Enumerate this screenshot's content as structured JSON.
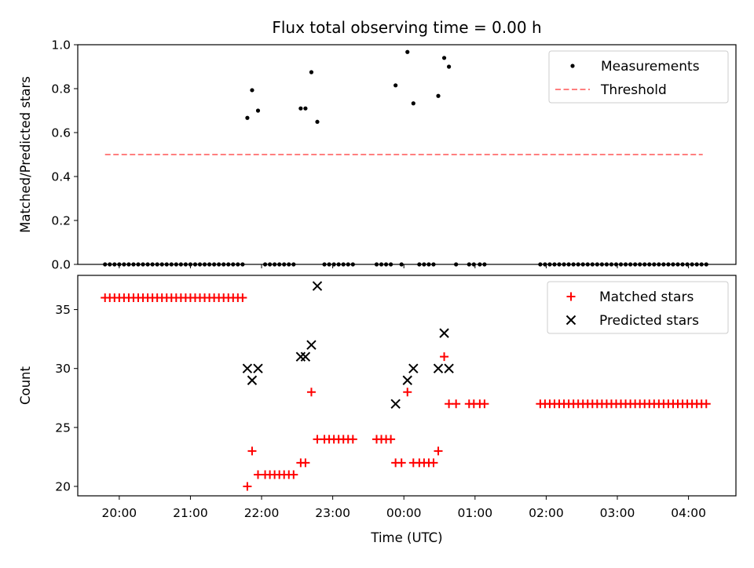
{
  "title": "Flux total observing time = 0.00 h",
  "xlabel": "Time (UTC)",
  "colors": {
    "measurement": "#000000",
    "threshold": "#ff7f7f",
    "matched": "#ff0000",
    "predicted": "#000000"
  },
  "chart_data": [
    {
      "type": "scatter",
      "ylabel": "Matched/Predicted stars",
      "ylim": [
        0,
        1.0
      ],
      "yticks": [
        "0.0",
        "0.2",
        "0.4",
        "0.6",
        "0.8",
        "1.0"
      ],
      "xlim": [
        "19:25",
        "04:40"
      ],
      "xticks": [
        "20:00",
        "21:00",
        "22:00",
        "23:00",
        "00:00",
        "01:00",
        "02:00",
        "03:00",
        "04:00"
      ],
      "legend_position": "top-right",
      "grid": false,
      "series": [
        {
          "name": "Measurements",
          "kind": "points",
          "points": [
            [
              "19:48",
              0
            ],
            [
              "19:52",
              0
            ],
            [
              "19:56",
              0
            ],
            [
              "20:00",
              0
            ],
            [
              "20:04",
              0
            ],
            [
              "20:08",
              0
            ],
            [
              "20:12",
              0
            ],
            [
              "20:16",
              0
            ],
            [
              "20:20",
              0
            ],
            [
              "20:24",
              0
            ],
            [
              "20:28",
              0
            ],
            [
              "20:32",
              0
            ],
            [
              "20:36",
              0
            ],
            [
              "20:40",
              0
            ],
            [
              "20:44",
              0
            ],
            [
              "20:48",
              0
            ],
            [
              "20:52",
              0
            ],
            [
              "20:56",
              0
            ],
            [
              "21:00",
              0
            ],
            [
              "21:04",
              0
            ],
            [
              "21:08",
              0
            ],
            [
              "21:12",
              0
            ],
            [
              "21:16",
              0
            ],
            [
              "21:20",
              0
            ],
            [
              "21:24",
              0
            ],
            [
              "21:28",
              0
            ],
            [
              "21:32",
              0
            ],
            [
              "21:36",
              0
            ],
            [
              "21:40",
              0
            ],
            [
              "21:44",
              0
            ],
            [
              "21:48",
              0.667
            ],
            [
              "21:52",
              0.793
            ],
            [
              "21:57",
              0.7
            ],
            [
              "22:03",
              0
            ],
            [
              "22:07",
              0
            ],
            [
              "22:11",
              0
            ],
            [
              "22:15",
              0
            ],
            [
              "22:19",
              0
            ],
            [
              "22:23",
              0
            ],
            [
              "22:27",
              0
            ],
            [
              "22:33",
              0.71
            ],
            [
              "22:37",
              0.71
            ],
            [
              "22:42",
              0.875
            ],
            [
              "22:47",
              0.649
            ],
            [
              "22:53",
              0
            ],
            [
              "22:57",
              0
            ],
            [
              "23:01",
              0
            ],
            [
              "23:05",
              0
            ],
            [
              "23:09",
              0
            ],
            [
              "23:13",
              0
            ],
            [
              "23:17",
              0
            ],
            [
              "23:37",
              0
            ],
            [
              "23:41",
              0
            ],
            [
              "23:45",
              0
            ],
            [
              "23:49",
              0
            ],
            [
              "23:53",
              0.815
            ],
            [
              "23:58",
              0
            ],
            [
              "00:03",
              0.967
            ],
            [
              "00:08",
              0.733
            ],
            [
              "00:13",
              0
            ],
            [
              "00:17",
              0
            ],
            [
              "00:21",
              0
            ],
            [
              "00:25",
              0
            ],
            [
              "00:29",
              0.767
            ],
            [
              "00:34",
              0.94
            ],
            [
              "00:38",
              0.9
            ],
            [
              "00:44",
              0
            ],
            [
              "00:55",
              0
            ],
            [
              "00:59",
              0
            ],
            [
              "01:04",
              0
            ],
            [
              "01:08",
              0
            ],
            [
              "01:55",
              0
            ],
            [
              "01:59",
              0
            ],
            [
              "02:03",
              0
            ],
            [
              "02:07",
              0
            ],
            [
              "02:11",
              0
            ],
            [
              "02:15",
              0
            ],
            [
              "02:19",
              0
            ],
            [
              "02:23",
              0
            ],
            [
              "02:27",
              0
            ],
            [
              "02:31",
              0
            ],
            [
              "02:35",
              0
            ],
            [
              "02:39",
              0
            ],
            [
              "02:43",
              0
            ],
            [
              "02:47",
              0
            ],
            [
              "02:51",
              0
            ],
            [
              "02:55",
              0
            ],
            [
              "02:59",
              0
            ],
            [
              "03:03",
              0
            ],
            [
              "03:07",
              0
            ],
            [
              "03:11",
              0
            ],
            [
              "03:15",
              0
            ],
            [
              "03:19",
              0
            ],
            [
              "03:23",
              0
            ],
            [
              "03:27",
              0
            ],
            [
              "03:31",
              0
            ],
            [
              "03:35",
              0
            ],
            [
              "03:39",
              0
            ],
            [
              "03:43",
              0
            ],
            [
              "03:47",
              0
            ],
            [
              "03:51",
              0
            ],
            [
              "03:55",
              0
            ],
            [
              "03:59",
              0
            ],
            [
              "04:03",
              0
            ],
            [
              "04:07",
              0
            ],
            [
              "04:11",
              0
            ],
            [
              "04:15",
              0
            ]
          ]
        },
        {
          "name": "Threshold",
          "kind": "dashed-line",
          "points": [
            [
              "19:48",
              0.5
            ],
            [
              "04:12",
              0.5
            ]
          ]
        }
      ]
    },
    {
      "type": "scatter",
      "ylabel": "Count",
      "ylim": [
        19.2,
        37.9
      ],
      "yticks": [
        "20",
        "25",
        "30",
        "35"
      ],
      "xlim": [
        "19:25",
        "04:40"
      ],
      "xticks": [
        "20:00",
        "21:00",
        "22:00",
        "23:00",
        "00:00",
        "01:00",
        "02:00",
        "03:00",
        "04:00"
      ],
      "legend_position": "top-right",
      "grid": false,
      "series": [
        {
          "name": "Matched stars",
          "marker": "plus",
          "points": [
            [
              "19:48",
              36
            ],
            [
              "19:52",
              36
            ],
            [
              "19:56",
              36
            ],
            [
              "20:00",
              36
            ],
            [
              "20:04",
              36
            ],
            [
              "20:08",
              36
            ],
            [
              "20:12",
              36
            ],
            [
              "20:16",
              36
            ],
            [
              "20:20",
              36
            ],
            [
              "20:24",
              36
            ],
            [
              "20:28",
              36
            ],
            [
              "20:32",
              36
            ],
            [
              "20:36",
              36
            ],
            [
              "20:40",
              36
            ],
            [
              "20:44",
              36
            ],
            [
              "20:48",
              36
            ],
            [
              "20:52",
              36
            ],
            [
              "20:56",
              36
            ],
            [
              "21:00",
              36
            ],
            [
              "21:04",
              36
            ],
            [
              "21:08",
              36
            ],
            [
              "21:12",
              36
            ],
            [
              "21:16",
              36
            ],
            [
              "21:20",
              36
            ],
            [
              "21:24",
              36
            ],
            [
              "21:28",
              36
            ],
            [
              "21:32",
              36
            ],
            [
              "21:36",
              36
            ],
            [
              "21:40",
              36
            ],
            [
              "21:44",
              36
            ],
            [
              "21:48",
              20
            ],
            [
              "21:52",
              23
            ],
            [
              "21:57",
              21
            ],
            [
              "22:03",
              21
            ],
            [
              "22:07",
              21
            ],
            [
              "22:11",
              21
            ],
            [
              "22:15",
              21
            ],
            [
              "22:19",
              21
            ],
            [
              "22:23",
              21
            ],
            [
              "22:27",
              21
            ],
            [
              "22:33",
              22
            ],
            [
              "22:37",
              22
            ],
            [
              "22:42",
              28
            ],
            [
              "22:47",
              24
            ],
            [
              "22:53",
              24
            ],
            [
              "22:57",
              24
            ],
            [
              "23:01",
              24
            ],
            [
              "23:05",
              24
            ],
            [
              "23:09",
              24
            ],
            [
              "23:13",
              24
            ],
            [
              "23:17",
              24
            ],
            [
              "23:37",
              24
            ],
            [
              "23:41",
              24
            ],
            [
              "23:45",
              24
            ],
            [
              "23:49",
              24
            ],
            [
              "23:53",
              22
            ],
            [
              "23:58",
              22
            ],
            [
              "00:03",
              28
            ],
            [
              "00:08",
              22
            ],
            [
              "00:13",
              22
            ],
            [
              "00:17",
              22
            ],
            [
              "00:21",
              22
            ],
            [
              "00:25",
              22
            ],
            [
              "00:29",
              23
            ],
            [
              "00:34",
              31
            ],
            [
              "00:38",
              27
            ],
            [
              "00:44",
              27
            ],
            [
              "00:55",
              27
            ],
            [
              "00:59",
              27
            ],
            [
              "01:04",
              27
            ],
            [
              "01:08",
              27
            ],
            [
              "01:55",
              27
            ],
            [
              "01:59",
              27
            ],
            [
              "02:03",
              27
            ],
            [
              "02:07",
              27
            ],
            [
              "02:11",
              27
            ],
            [
              "02:15",
              27
            ],
            [
              "02:19",
              27
            ],
            [
              "02:23",
              27
            ],
            [
              "02:27",
              27
            ],
            [
              "02:31",
              27
            ],
            [
              "02:35",
              27
            ],
            [
              "02:39",
              27
            ],
            [
              "02:43",
              27
            ],
            [
              "02:47",
              27
            ],
            [
              "02:51",
              27
            ],
            [
              "02:55",
              27
            ],
            [
              "02:59",
              27
            ],
            [
              "03:03",
              27
            ],
            [
              "03:07",
              27
            ],
            [
              "03:11",
              27
            ],
            [
              "03:15",
              27
            ],
            [
              "03:19",
              27
            ],
            [
              "03:23",
              27
            ],
            [
              "03:27",
              27
            ],
            [
              "03:31",
              27
            ],
            [
              "03:35",
              27
            ],
            [
              "03:39",
              27
            ],
            [
              "03:43",
              27
            ],
            [
              "03:47",
              27
            ],
            [
              "03:51",
              27
            ],
            [
              "03:55",
              27
            ],
            [
              "03:59",
              27
            ],
            [
              "04:03",
              27
            ],
            [
              "04:07",
              27
            ],
            [
              "04:11",
              27
            ],
            [
              "04:15",
              27
            ]
          ]
        },
        {
          "name": "Predicted stars",
          "marker": "x",
          "points": [
            [
              "21:48",
              30
            ],
            [
              "21:52",
              29
            ],
            [
              "21:57",
              30
            ],
            [
              "22:33",
              31
            ],
            [
              "22:37",
              31
            ],
            [
              "22:42",
              32
            ],
            [
              "22:47",
              37
            ],
            [
              "23:53",
              27
            ],
            [
              "00:03",
              29
            ],
            [
              "00:08",
              30
            ],
            [
              "00:29",
              30
            ],
            [
              "00:34",
              33
            ],
            [
              "00:38",
              30
            ]
          ]
        }
      ]
    }
  ]
}
